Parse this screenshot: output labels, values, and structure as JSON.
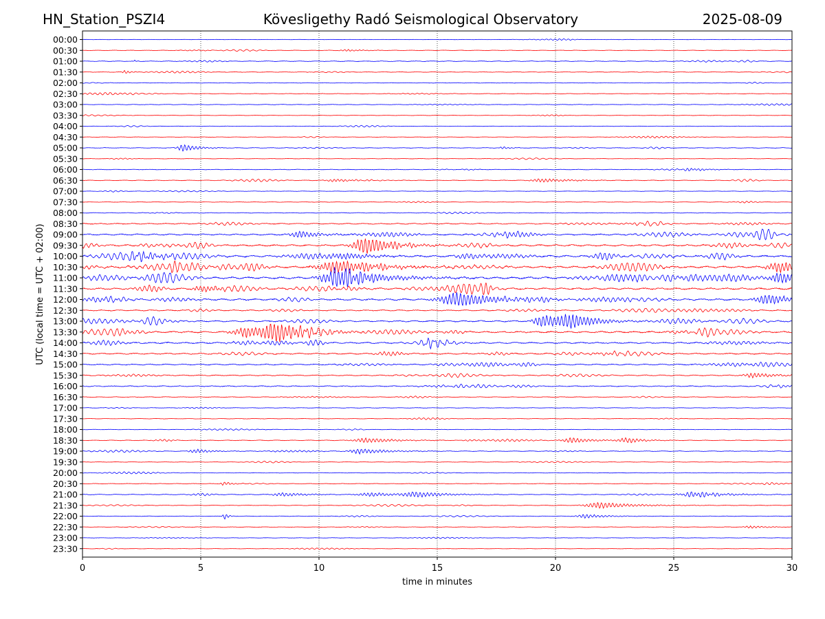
{
  "header": {
    "station": "HN_Station_PSZI4",
    "title": "Kövesligethy Radó Seismological Observatory",
    "date": "2025-08-09"
  },
  "colors": {
    "even_row": "#0000ff",
    "odd_row": "#ff0000",
    "grid": "#000000",
    "axes": "#000000"
  },
  "chart_data": {
    "type": "line",
    "title": "Kövesligethy Radó Seismological Observatory",
    "xlabel": "time in minutes",
    "ylabel": "UTC (local time = UTC + 02:00)",
    "xlim": [
      0,
      30
    ],
    "xticks": [
      "0",
      "5",
      "10",
      "15",
      "20",
      "25",
      "30"
    ],
    "grid": "vertical dotted lines at 5-minute intervals",
    "row_labels": [
      "00:00",
      "00:30",
      "01:00",
      "01:30",
      "02:00",
      "02:30",
      "03:00",
      "03:30",
      "04:00",
      "04:30",
      "05:00",
      "05:30",
      "06:00",
      "06:30",
      "07:00",
      "07:30",
      "08:00",
      "08:30",
      "09:00",
      "09:30",
      "10:00",
      "10:30",
      "11:00",
      "11:30",
      "12:00",
      "12:30",
      "13:00",
      "13:30",
      "14:00",
      "14:30",
      "15:00",
      "15:30",
      "16:00",
      "16:30",
      "17:00",
      "17:30",
      "18:00",
      "18:30",
      "19:00",
      "19:30",
      "20:00",
      "20:30",
      "21:00",
      "21:30",
      "22:00",
      "22:30",
      "23:00",
      "23:30"
    ],
    "row_activity": [
      0.4,
      0.6,
      0.8,
      0.7,
      0.6,
      0.7,
      0.6,
      0.5,
      0.5,
      0.5,
      0.7,
      0.5,
      0.7,
      0.8,
      0.5,
      0.6,
      0.7,
      1.3,
      1.7,
      2.0,
      2.2,
      2.4,
      2.4,
      2.0,
      2.0,
      1.4,
      1.7,
      2.0,
      1.8,
      1.6,
      1.4,
      1.2,
      1.2,
      0.8,
      0.6,
      0.6,
      0.6,
      0.8,
      0.8,
      0.6,
      0.6,
      0.7,
      0.8,
      0.7,
      0.6,
      0.6,
      0.5,
      0.4
    ],
    "events": [
      {
        "row": 1,
        "t": 11.2,
        "amp": 1.5,
        "dur": 0.6
      },
      {
        "row": 2,
        "t": 2.2,
        "amp": 1.5,
        "dur": 0.1
      },
      {
        "row": 3,
        "t": 1.8,
        "amp": 3,
        "dur": 0.2
      },
      {
        "row": 10,
        "t": 4.3,
        "amp": 6,
        "dur": 0.5
      },
      {
        "row": 10,
        "t": 17.8,
        "amp": 2,
        "dur": 0.3
      },
      {
        "row": 12,
        "t": 25.7,
        "amp": 2,
        "dur": 0.7
      },
      {
        "row": 13,
        "t": 10.7,
        "amp": 2,
        "dur": 0.8
      },
      {
        "row": 13,
        "t": 19.5,
        "amp": 3,
        "dur": 1.0
      },
      {
        "row": 18,
        "t": 9.2,
        "amp": 5,
        "dur": 0.8
      },
      {
        "row": 19,
        "t": 12.0,
        "amp": 13,
        "dur": 1.0
      },
      {
        "row": 20,
        "t": 2.5,
        "amp": 5,
        "dur": 1.2
      },
      {
        "row": 20,
        "t": 11.0,
        "amp": 5,
        "dur": 1.0
      },
      {
        "row": 21,
        "t": 10.8,
        "amp": 10,
        "dur": 1.5
      },
      {
        "row": 21,
        "t": 29.5,
        "amp": 8,
        "dur": 1.0
      },
      {
        "row": 22,
        "t": 10.9,
        "amp": 14,
        "dur": 1.5
      },
      {
        "row": 22,
        "t": 29.5,
        "amp": 9,
        "dur": 0.8
      },
      {
        "row": 23,
        "t": 5.1,
        "amp": 5,
        "dur": 0.8
      },
      {
        "row": 24,
        "t": 15.9,
        "amp": 11,
        "dur": 1.5
      },
      {
        "row": 24,
        "t": 29.0,
        "amp": 8,
        "dur": 1.0
      },
      {
        "row": 26,
        "t": 19.5,
        "amp": 10,
        "dur": 0.8
      },
      {
        "row": 26,
        "t": 20.7,
        "amp": 9,
        "dur": 1.0
      },
      {
        "row": 27,
        "t": 8.2,
        "amp": 12,
        "dur": 1.0
      },
      {
        "row": 27,
        "t": 7.0,
        "amp": 8,
        "dur": 1.2
      },
      {
        "row": 28,
        "t": 14.7,
        "amp": 5,
        "dur": 0.6
      },
      {
        "row": 31,
        "t": 28.4,
        "amp": 4,
        "dur": 0.8
      },
      {
        "row": 37,
        "t": 12.0,
        "amp": 4,
        "dur": 1.0
      },
      {
        "row": 37,
        "t": 20.7,
        "amp": 4,
        "dur": 0.8
      },
      {
        "row": 37,
        "t": 23.0,
        "amp": 4,
        "dur": 0.6
      },
      {
        "row": 38,
        "t": 4.8,
        "amp": 3,
        "dur": 0.6
      },
      {
        "row": 38,
        "t": 11.8,
        "amp": 4,
        "dur": 1.0
      },
      {
        "row": 41,
        "t": 6.0,
        "amp": 3,
        "dur": 0.3
      },
      {
        "row": 42,
        "t": 8.5,
        "amp": 3,
        "dur": 0.8
      },
      {
        "row": 42,
        "t": 12.2,
        "amp": 3,
        "dur": 1.0
      },
      {
        "row": 42,
        "t": 14.1,
        "amp": 4,
        "dur": 1.0
      },
      {
        "row": 42,
        "t": 25.9,
        "amp": 4,
        "dur": 1.2
      },
      {
        "row": 43,
        "t": 21.9,
        "amp": 5,
        "dur": 1.2
      },
      {
        "row": 44,
        "t": 6.0,
        "amp": 5,
        "dur": 0.15
      },
      {
        "row": 44,
        "t": 21.3,
        "amp": 3,
        "dur": 0.8
      },
      {
        "row": 45,
        "t": 28.3,
        "amp": 2,
        "dur": 0.6
      }
    ]
  }
}
